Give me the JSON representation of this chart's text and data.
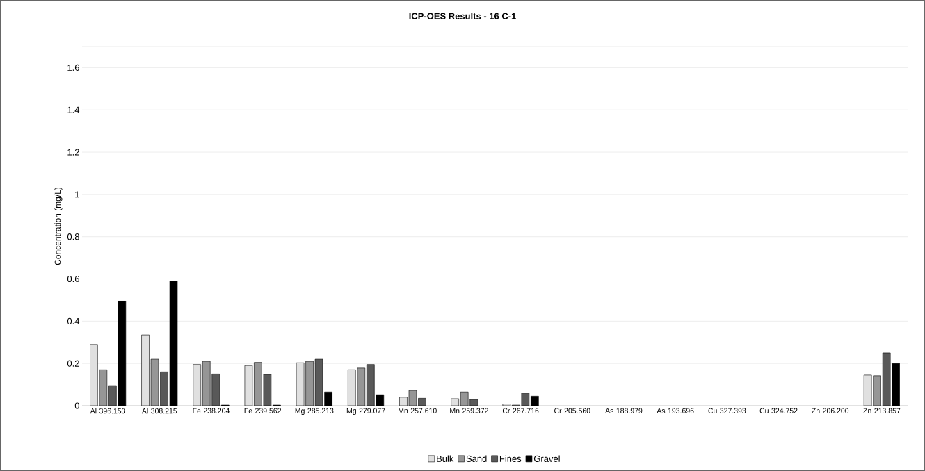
{
  "chart_data": {
    "type": "bar",
    "title": "ICP-OES Results - 16 C-1",
    "ylabel": "Concentration (mg/L)",
    "categories": [
      "Al 396.153",
      "Al 308.215",
      "Fe 238.204",
      "Fe 239.562",
      "Mg 285.213",
      "Mg 279.077",
      "Mn 257.610",
      "Mn 259.372",
      "Cr 267.716",
      "Cr 205.560",
      "As 188.979",
      "As 193.696",
      "Cu 327.393",
      "Cu 324.752",
      "Zn 206.200",
      "Zn 213.857"
    ],
    "series": [
      {
        "name": "Bulk",
        "color": "#e0e0e0",
        "values": [
          0.29,
          0.335,
          0.195,
          0.19,
          0.203,
          0.17,
          0.04,
          0.033,
          0.008,
          null,
          null,
          null,
          null,
          null,
          null,
          0.145
        ]
      },
      {
        "name": "Sand",
        "color": "#969696",
        "values": [
          0.17,
          0.22,
          0.21,
          0.205,
          0.21,
          0.178,
          0.072,
          0.065,
          0.003,
          null,
          null,
          null,
          null,
          null,
          null,
          0.142
        ]
      },
      {
        "name": "Fines",
        "color": "#595959",
        "values": [
          0.095,
          0.16,
          0.15,
          0.148,
          0.22,
          0.195,
          0.035,
          0.03,
          0.06,
          null,
          null,
          null,
          null,
          null,
          null,
          0.25
        ]
      },
      {
        "name": "Gravel",
        "color": "#000000",
        "values": [
          0.495,
          0.59,
          0.003,
          0.003,
          0.065,
          0.052,
          null,
          null,
          0.045,
          null,
          null,
          null,
          null,
          null,
          null,
          0.2
        ]
      }
    ],
    "ylim": [
      0,
      1.7
    ],
    "yticks": [
      0,
      0.2,
      0.4,
      0.6,
      0.8,
      1,
      1.2,
      1.4,
      1.6,
      {
        "value": 1.7,
        "label": null
      }
    ],
    "grid": "y",
    "legend": "bottom"
  }
}
